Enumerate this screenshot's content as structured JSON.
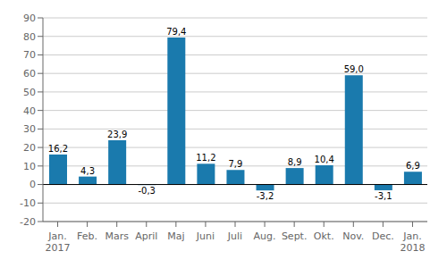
{
  "chart_data": {
    "type": "bar",
    "categories": [
      "Jan.\n2017",
      "Feb.",
      "Mars",
      "April",
      "Maj",
      "Juni",
      "Juli",
      "Aug.",
      "Sept.",
      "Okt.",
      "Nov.",
      "Dec.",
      "Jan.\n2018"
    ],
    "values": [
      16.2,
      4.3,
      23.9,
      -0.3,
      79.4,
      11.2,
      7.9,
      -3.2,
      8.9,
      10.4,
      59.0,
      -3.1,
      6.9
    ],
    "value_labels": [
      "16,2",
      "4,3",
      "23,9",
      "-0,3",
      "79,4",
      "11,2",
      "7,9",
      "-3,2",
      "8,9",
      "10,4",
      "59,0",
      "-3,1",
      "6,9"
    ],
    "data_labels": true,
    "color": "#1a7aad",
    "ylim": [
      -20,
      90
    ],
    "yticks": [
      -20,
      -10,
      0,
      10,
      20,
      30,
      40,
      50,
      60,
      70,
      80,
      90
    ],
    "grid": true
  }
}
